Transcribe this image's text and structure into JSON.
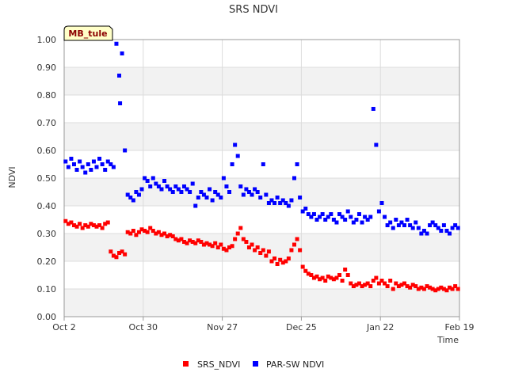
{
  "colors": {
    "band": "#f2f2f2",
    "grid": "#dcdcdc",
    "axis": "#999999",
    "srs": "#ff0000",
    "par": "#0000ff",
    "badge_bg": "#ffffc8",
    "badge_text": "#8b0000"
  },
  "badge": {
    "label": "MB_tule"
  },
  "chart_data": {
    "type": "scatter",
    "title": "SRS NDVI",
    "xlabel": "Time",
    "ylabel": "NDVI",
    "xlim_days": [
      0,
      140
    ],
    "ylim": [
      0.0,
      1.0
    ],
    "y_ticks": [
      {
        "value": 0.0,
        "label": "0.00"
      },
      {
        "value": 0.1,
        "label": "0.10"
      },
      {
        "value": 0.2,
        "label": "0.20"
      },
      {
        "value": 0.3,
        "label": "0.30"
      },
      {
        "value": 0.4,
        "label": "0.40"
      },
      {
        "value": 0.5,
        "label": "0.50"
      },
      {
        "value": 0.6,
        "label": "0.60"
      },
      {
        "value": 0.7,
        "label": "0.70"
      },
      {
        "value": 0.8,
        "label": "0.80"
      },
      {
        "value": 0.9,
        "label": "0.90"
      },
      {
        "value": 1.0,
        "label": "1.00"
      }
    ],
    "x_ticks": [
      {
        "day": 0,
        "label": "Oct 2"
      },
      {
        "day": 28,
        "label": "Oct 30"
      },
      {
        "day": 56,
        "label": "Nov 27"
      },
      {
        "day": 84,
        "label": "Dec 25"
      },
      {
        "day": 112,
        "label": "Jan 22"
      },
      {
        "day": 140,
        "label": "Feb 19"
      }
    ],
    "legend": [
      "SRS_NDVI",
      "PAR-SW NDVI"
    ],
    "series": [
      {
        "name": "SRS_NDVI",
        "color": "#ff0000",
        "points": [
          [
            0.5,
            0.345
          ],
          [
            1.5,
            0.335
          ],
          [
            2.5,
            0.34
          ],
          [
            3.5,
            0.33
          ],
          [
            4.5,
            0.325
          ],
          [
            5.5,
            0.335
          ],
          [
            6.5,
            0.32
          ],
          [
            7.5,
            0.33
          ],
          [
            8.5,
            0.325
          ],
          [
            9.5,
            0.335
          ],
          [
            10.5,
            0.33
          ],
          [
            11.5,
            0.325
          ],
          [
            12.5,
            0.33
          ],
          [
            13.5,
            0.32
          ],
          [
            14.5,
            0.335
          ],
          [
            15.5,
            0.34
          ],
          [
            16.5,
            0.235
          ],
          [
            17.5,
            0.22
          ],
          [
            18.5,
            0.215
          ],
          [
            19.5,
            0.23
          ],
          [
            20.5,
            0.235
          ],
          [
            21.5,
            0.225
          ],
          [
            22.5,
            0.305
          ],
          [
            23.5,
            0.3
          ],
          [
            24.5,
            0.31
          ],
          [
            25.5,
            0.295
          ],
          [
            26.5,
            0.305
          ],
          [
            27.5,
            0.315
          ],
          [
            28.5,
            0.31
          ],
          [
            29.5,
            0.305
          ],
          [
            30.5,
            0.32
          ],
          [
            31.5,
            0.31
          ],
          [
            32.5,
            0.3
          ],
          [
            33.5,
            0.305
          ],
          [
            34.5,
            0.295
          ],
          [
            35.5,
            0.3
          ],
          [
            36.5,
            0.29
          ],
          [
            37.5,
            0.295
          ],
          [
            38.5,
            0.29
          ],
          [
            39.5,
            0.28
          ],
          [
            40.5,
            0.275
          ],
          [
            41.5,
            0.28
          ],
          [
            42.5,
            0.27
          ],
          [
            43.5,
            0.265
          ],
          [
            44.5,
            0.275
          ],
          [
            45.5,
            0.27
          ],
          [
            46.5,
            0.265
          ],
          [
            47.5,
            0.275
          ],
          [
            48.5,
            0.27
          ],
          [
            49.5,
            0.26
          ],
          [
            50.5,
            0.265
          ],
          [
            51.5,
            0.26
          ],
          [
            52.5,
            0.255
          ],
          [
            53.5,
            0.265
          ],
          [
            54.5,
            0.25
          ],
          [
            55.5,
            0.26
          ],
          [
            56.5,
            0.245
          ],
          [
            57.5,
            0.24
          ],
          [
            58.5,
            0.25
          ],
          [
            59.5,
            0.255
          ],
          [
            60.5,
            0.28
          ],
          [
            61.5,
            0.3
          ],
          [
            62.5,
            0.32
          ],
          [
            63.5,
            0.28
          ],
          [
            64.5,
            0.27
          ],
          [
            65.5,
            0.25
          ],
          [
            66.5,
            0.26
          ],
          [
            67.5,
            0.24
          ],
          [
            68.5,
            0.25
          ],
          [
            69.5,
            0.23
          ],
          [
            70.5,
            0.24
          ],
          [
            71.5,
            0.22
          ],
          [
            72.5,
            0.235
          ],
          [
            73.5,
            0.2
          ],
          [
            74.5,
            0.21
          ],
          [
            75.5,
            0.19
          ],
          [
            76.5,
            0.205
          ],
          [
            77.5,
            0.195
          ],
          [
            78.5,
            0.2
          ],
          [
            79.5,
            0.21
          ],
          [
            80.5,
            0.24
          ],
          [
            81.5,
            0.26
          ],
          [
            82.5,
            0.28
          ],
          [
            83.5,
            0.24
          ],
          [
            84.5,
            0.18
          ],
          [
            85.5,
            0.165
          ],
          [
            86.5,
            0.155
          ],
          [
            87.5,
            0.15
          ],
          [
            88.5,
            0.14
          ],
          [
            89.5,
            0.145
          ],
          [
            90.5,
            0.135
          ],
          [
            91.5,
            0.14
          ],
          [
            92.5,
            0.13
          ],
          [
            93.5,
            0.145
          ],
          [
            94.5,
            0.14
          ],
          [
            95.5,
            0.135
          ],
          [
            96.5,
            0.14
          ],
          [
            97.5,
            0.15
          ],
          [
            98.5,
            0.13
          ],
          [
            99.5,
            0.17
          ],
          [
            100.5,
            0.15
          ],
          [
            101.5,
            0.12
          ],
          [
            102.5,
            0.11
          ],
          [
            103.5,
            0.115
          ],
          [
            104.5,
            0.12
          ],
          [
            105.5,
            0.11
          ],
          [
            106.5,
            0.115
          ],
          [
            107.5,
            0.12
          ],
          [
            108.5,
            0.11
          ],
          [
            109.5,
            0.13
          ],
          [
            110.5,
            0.14
          ],
          [
            111.5,
            0.12
          ],
          [
            112.5,
            0.13
          ],
          [
            113.5,
            0.12
          ],
          [
            114.5,
            0.11
          ],
          [
            115.5,
            0.13
          ],
          [
            116.5,
            0.1
          ],
          [
            117.5,
            0.12
          ],
          [
            118.5,
            0.11
          ],
          [
            119.5,
            0.115
          ],
          [
            120.5,
            0.12
          ],
          [
            121.5,
            0.11
          ],
          [
            122.5,
            0.105
          ],
          [
            123.5,
            0.115
          ],
          [
            124.5,
            0.11
          ],
          [
            125.5,
            0.1
          ],
          [
            126.5,
            0.105
          ],
          [
            127.5,
            0.1
          ],
          [
            128.5,
            0.11
          ],
          [
            129.5,
            0.105
          ],
          [
            130.5,
            0.1
          ],
          [
            131.5,
            0.095
          ],
          [
            132.5,
            0.1
          ],
          [
            133.5,
            0.105
          ],
          [
            134.5,
            0.1
          ],
          [
            135.5,
            0.095
          ],
          [
            136.5,
            0.105
          ],
          [
            137.5,
            0.1
          ],
          [
            138.5,
            0.11
          ],
          [
            139.5,
            0.1
          ]
        ]
      },
      {
        "name": "PAR-SW NDVI",
        "color": "#0000ff",
        "points": [
          [
            0.5,
            0.56
          ],
          [
            1.5,
            0.54
          ],
          [
            2.5,
            0.57
          ],
          [
            3.5,
            0.55
          ],
          [
            4.5,
            0.53
          ],
          [
            5.5,
            0.56
          ],
          [
            6.5,
            0.54
          ],
          [
            7.5,
            0.52
          ],
          [
            8.5,
            0.55
          ],
          [
            9.5,
            0.53
          ],
          [
            10.5,
            0.56
          ],
          [
            11.5,
            0.54
          ],
          [
            12.5,
            0.57
          ],
          [
            13.5,
            0.55
          ],
          [
            14.5,
            0.53
          ],
          [
            15.5,
            0.56
          ],
          [
            16.5,
            0.55
          ],
          [
            17.5,
            0.54
          ],
          [
            18.5,
            0.985
          ],
          [
            19.5,
            0.87
          ],
          [
            20.5,
            0.95
          ],
          [
            21.5,
            0.6
          ],
          [
            19.8,
            0.77
          ],
          [
            22.5,
            0.44
          ],
          [
            23.5,
            0.43
          ],
          [
            24.5,
            0.42
          ],
          [
            25.5,
            0.45
          ],
          [
            26.5,
            0.44
          ],
          [
            27.5,
            0.46
          ],
          [
            28.5,
            0.5
          ],
          [
            29.5,
            0.49
          ],
          [
            30.5,
            0.47
          ],
          [
            31.5,
            0.5
          ],
          [
            32.5,
            0.48
          ],
          [
            33.5,
            0.47
          ],
          [
            34.5,
            0.46
          ],
          [
            35.5,
            0.49
          ],
          [
            36.5,
            0.47
          ],
          [
            37.5,
            0.46
          ],
          [
            38.5,
            0.45
          ],
          [
            39.5,
            0.47
          ],
          [
            40.5,
            0.46
          ],
          [
            41.5,
            0.45
          ],
          [
            42.5,
            0.47
          ],
          [
            43.5,
            0.46
          ],
          [
            44.5,
            0.45
          ],
          [
            45.5,
            0.48
          ],
          [
            46.5,
            0.4
          ],
          [
            47.5,
            0.43
          ],
          [
            48.5,
            0.45
          ],
          [
            49.5,
            0.44
          ],
          [
            50.5,
            0.43
          ],
          [
            51.5,
            0.46
          ],
          [
            52.5,
            0.42
          ],
          [
            53.5,
            0.45
          ],
          [
            54.5,
            0.44
          ],
          [
            55.5,
            0.43
          ],
          [
            56.5,
            0.5
          ],
          [
            57.5,
            0.47
          ],
          [
            58.5,
            0.45
          ],
          [
            59.5,
            0.55
          ],
          [
            60.5,
            0.62
          ],
          [
            61.5,
            0.58
          ],
          [
            62.5,
            0.47
          ],
          [
            63.5,
            0.44
          ],
          [
            64.5,
            0.46
          ],
          [
            65.5,
            0.45
          ],
          [
            66.5,
            0.44
          ],
          [
            67.5,
            0.46
          ],
          [
            68.5,
            0.45
          ],
          [
            69.5,
            0.43
          ],
          [
            70.5,
            0.55
          ],
          [
            71.5,
            0.44
          ],
          [
            72.5,
            0.41
          ],
          [
            73.5,
            0.42
          ],
          [
            74.5,
            0.41
          ],
          [
            75.5,
            0.43
          ],
          [
            76.5,
            0.41
          ],
          [
            77.5,
            0.42
          ],
          [
            78.5,
            0.41
          ],
          [
            79.5,
            0.4
          ],
          [
            80.5,
            0.42
          ],
          [
            81.5,
            0.5
          ],
          [
            82.5,
            0.55
          ],
          [
            83.5,
            0.43
          ],
          [
            84.5,
            0.38
          ],
          [
            85.5,
            0.39
          ],
          [
            86.5,
            0.37
          ],
          [
            87.5,
            0.36
          ],
          [
            88.5,
            0.37
          ],
          [
            89.5,
            0.35
          ],
          [
            90.5,
            0.36
          ],
          [
            91.5,
            0.37
          ],
          [
            92.5,
            0.35
          ],
          [
            93.5,
            0.36
          ],
          [
            94.5,
            0.37
          ],
          [
            95.5,
            0.35
          ],
          [
            96.5,
            0.34
          ],
          [
            97.5,
            0.37
          ],
          [
            98.5,
            0.36
          ],
          [
            99.5,
            0.35
          ],
          [
            100.5,
            0.38
          ],
          [
            101.5,
            0.36
          ],
          [
            102.5,
            0.34
          ],
          [
            103.5,
            0.35
          ],
          [
            104.5,
            0.37
          ],
          [
            105.5,
            0.34
          ],
          [
            106.5,
            0.36
          ],
          [
            107.5,
            0.35
          ],
          [
            108.5,
            0.36
          ],
          [
            109.5,
            0.75
          ],
          [
            110.5,
            0.62
          ],
          [
            111.5,
            0.38
          ],
          [
            112.5,
            0.41
          ],
          [
            113.5,
            0.36
          ],
          [
            114.5,
            0.33
          ],
          [
            115.5,
            0.34
          ],
          [
            116.5,
            0.32
          ],
          [
            117.5,
            0.35
          ],
          [
            118.5,
            0.33
          ],
          [
            119.5,
            0.34
          ],
          [
            120.5,
            0.33
          ],
          [
            121.5,
            0.35
          ],
          [
            122.5,
            0.33
          ],
          [
            123.5,
            0.32
          ],
          [
            124.5,
            0.34
          ],
          [
            125.5,
            0.32
          ],
          [
            126.5,
            0.3
          ],
          [
            127.5,
            0.31
          ],
          [
            128.5,
            0.3
          ],
          [
            129.5,
            0.33
          ],
          [
            130.5,
            0.34
          ],
          [
            131.5,
            0.33
          ],
          [
            132.5,
            0.32
          ],
          [
            133.5,
            0.31
          ],
          [
            134.5,
            0.33
          ],
          [
            135.5,
            0.31
          ],
          [
            136.5,
            0.3
          ],
          [
            137.5,
            0.32
          ],
          [
            138.5,
            0.33
          ],
          [
            139.5,
            0.32
          ]
        ]
      }
    ]
  }
}
